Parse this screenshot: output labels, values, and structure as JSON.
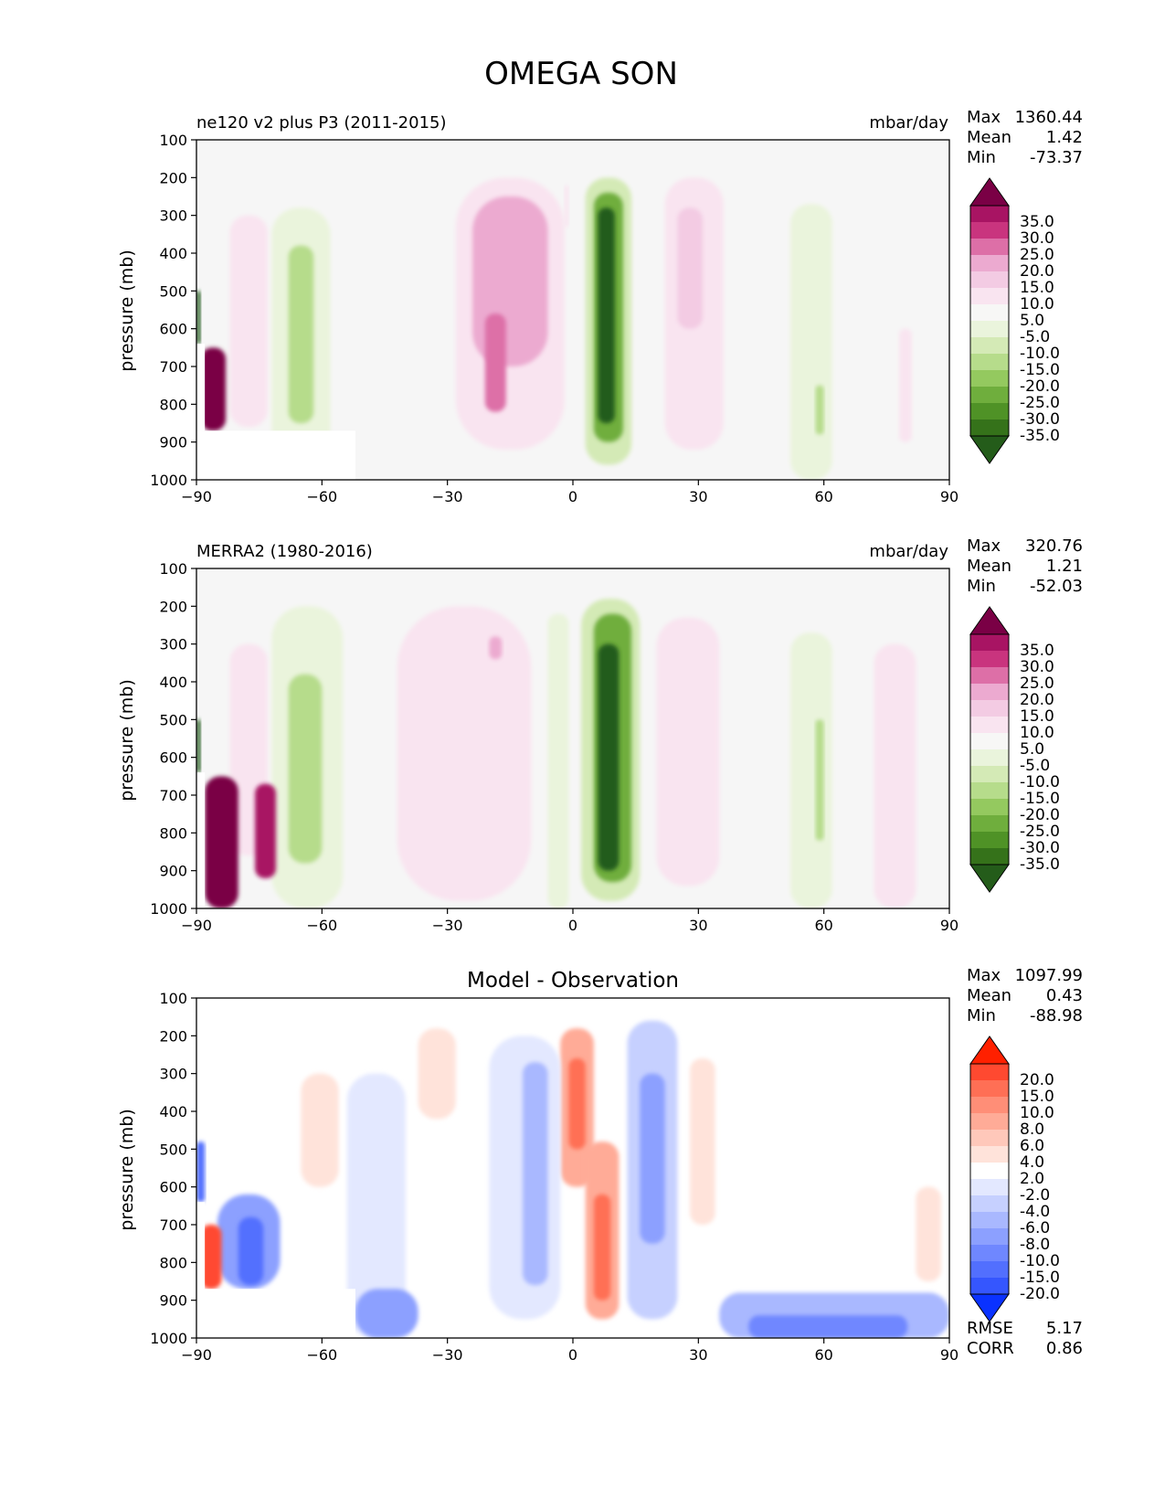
{
  "figure_title": "OMEGA SON",
  "colors": {
    "omega_levels": [
      "#7a0045",
      "#a81463",
      "#c9347e",
      "#dd6fa7",
      "#ecaad0",
      "#f3cbe3",
      "#f9e4f0",
      "#f7f7f6",
      "#eaf4dc",
      "#d4eab6",
      "#b6dc8b",
      "#94c95f",
      "#6fae3d",
      "#4f9226",
      "#35721a",
      "#245c1a"
    ],
    "diff_levels": [
      "#ff2000",
      "#ff4930",
      "#ff6f55",
      "#ff8e77",
      "#ffab97",
      "#ffc8ba",
      "#ffe3da",
      "#ffffff",
      "#e3e8ff",
      "#c6d0ff",
      "#a9b8ff",
      "#8ca0ff",
      "#6f87ff",
      "#526ffe",
      "#3556fe",
      "#0a32ff"
    ],
    "background": "#f6f6f6"
  },
  "chart_data": [
    {
      "type": "heatmap",
      "title": "ne120 v2 plus P3 (2011-2015)",
      "units": "mbar/day",
      "xlabel": "",
      "ylabel": "pressure (mb)",
      "xlim": [
        -90,
        90
      ],
      "ylim": [
        1000,
        100
      ],
      "xticks": [
        "−90",
        "−60",
        "−30",
        "0",
        "30",
        "60",
        "90"
      ],
      "yticks": [
        "100",
        "200",
        "300",
        "400",
        "500",
        "600",
        "700",
        "800",
        "900",
        "1000"
      ],
      "stats": {
        "max_label": "Max",
        "max": "1360.44",
        "mean_label": "Mean",
        "mean": "1.42",
        "min_label": "Min",
        "min": "-73.37"
      },
      "colorbar": {
        "labels": [
          "35.0",
          "30.0",
          "25.0",
          "20.0",
          "15.0",
          "10.0",
          "5.0",
          "-5.0",
          "-10.0",
          "-15.0",
          "-20.0",
          "-25.0",
          "-30.0",
          "-35.0"
        ]
      },
      "features": [
        {
          "lat": [
            -28,
            -2
          ],
          "p": [
            200,
            920
          ],
          "value": 8
        },
        {
          "lat": [
            -24,
            -6
          ],
          "p": [
            250,
            700
          ],
          "value": 16
        },
        {
          "lat": [
            -21,
            -16
          ],
          "p": [
            560,
            820
          ],
          "value": 22
        },
        {
          "lat": [
            -2,
            -1
          ],
          "p": [
            220,
            330
          ],
          "value": 7
        },
        {
          "lat": [
            3,
            14
          ],
          "p": [
            200,
            960
          ],
          "value": -12
        },
        {
          "lat": [
            5,
            12
          ],
          "p": [
            240,
            900
          ],
          "value": -25
        },
        {
          "lat": [
            6,
            10
          ],
          "p": [
            280,
            850
          ],
          "value": -37
        },
        {
          "lat": [
            22,
            36
          ],
          "p": [
            200,
            920
          ],
          "value": 8
        },
        {
          "lat": [
            25,
            31
          ],
          "p": [
            280,
            600
          ],
          "value": 14
        },
        {
          "lat": [
            -72,
            -58
          ],
          "p": [
            280,
            1000
          ],
          "value": -8
        },
        {
          "lat": [
            -68,
            -62
          ],
          "p": [
            380,
            850
          ],
          "value": -15
        },
        {
          "lat": [
            52,
            62
          ],
          "p": [
            270,
            1000
          ],
          "value": -8
        },
        {
          "lat": [
            58,
            60
          ],
          "p": [
            750,
            880
          ],
          "value": -18
        },
        {
          "lat": [
            -82,
            -73
          ],
          "p": [
            300,
            860
          ],
          "value": 7
        },
        {
          "lat": [
            -89,
            -83
          ],
          "p": [
            650,
            870
          ],
          "value": 40
        },
        {
          "lat": [
            -90,
            -89
          ],
          "p": [
            500,
            640
          ],
          "value": -37
        },
        {
          "lat": [
            78,
            81
          ],
          "p": [
            600,
            900
          ],
          "value": 8
        }
      ],
      "masks": [
        {
          "lat": [
            -90,
            -52
          ],
          "p": [
            870,
            1000
          ]
        },
        {
          "lat": [
            -90,
            -88
          ],
          "p": [
            640,
            870
          ]
        }
      ]
    },
    {
      "type": "heatmap",
      "title": "MERRA2 (1980-2016)",
      "units": "mbar/day",
      "xlabel": "",
      "ylabel": "pressure (mb)",
      "xlim": [
        -90,
        90
      ],
      "ylim": [
        1000,
        100
      ],
      "xticks": [
        "−90",
        "−60",
        "−30",
        "0",
        "30",
        "60",
        "90"
      ],
      "yticks": [
        "100",
        "200",
        "300",
        "400",
        "500",
        "600",
        "700",
        "800",
        "900",
        "1000"
      ],
      "stats": {
        "max_label": "Max",
        "max": "320.76",
        "mean_label": "Mean",
        "mean": "1.21",
        "min_label": "Min",
        "min": "-52.03"
      },
      "colorbar": {
        "labels": [
          "35.0",
          "30.0",
          "25.0",
          "20.0",
          "15.0",
          "10.0",
          "5.0",
          "-5.0",
          "-10.0",
          "-15.0",
          "-20.0",
          "-25.0",
          "-30.0",
          "-35.0"
        ]
      },
      "features": [
        {
          "lat": [
            -42,
            -10
          ],
          "p": [
            200,
            980
          ],
          "value": 8
        },
        {
          "lat": [
            -20,
            -17
          ],
          "p": [
            280,
            340
          ],
          "value": 17
        },
        {
          "lat": [
            -6,
            -1
          ],
          "p": [
            220,
            1000
          ],
          "value": -7
        },
        {
          "lat": [
            2,
            16
          ],
          "p": [
            180,
            980
          ],
          "value": -12
        },
        {
          "lat": [
            5,
            14
          ],
          "p": [
            220,
            930
          ],
          "value": -25
        },
        {
          "lat": [
            6,
            11
          ],
          "p": [
            300,
            900
          ],
          "value": -38
        },
        {
          "lat": [
            20,
            35
          ],
          "p": [
            230,
            940
          ],
          "value": 8
        },
        {
          "lat": [
            -72,
            -55
          ],
          "p": [
            200,
            1000
          ],
          "value": -8
        },
        {
          "lat": [
            -68,
            -60
          ],
          "p": [
            380,
            880
          ],
          "value": -15
        },
        {
          "lat": [
            52,
            62
          ],
          "p": [
            270,
            1000
          ],
          "value": -8
        },
        {
          "lat": [
            58,
            60
          ],
          "p": [
            500,
            820
          ],
          "value": -16
        },
        {
          "lat": [
            -82,
            -73
          ],
          "p": [
            300,
            860
          ],
          "value": 7
        },
        {
          "lat": [
            -88,
            -80
          ],
          "p": [
            650,
            1000
          ],
          "value": 40
        },
        {
          "lat": [
            -76,
            -71
          ],
          "p": [
            670,
            920
          ],
          "value": 32
        },
        {
          "lat": [
            -90,
            -89
          ],
          "p": [
            500,
            640
          ],
          "value": -37
        },
        {
          "lat": [
            72,
            82
          ],
          "p": [
            300,
            1000
          ],
          "value": 7
        }
      ],
      "masks": [
        {
          "lat": [
            -90,
            -88
          ],
          "p": [
            640,
            1000
          ]
        }
      ]
    },
    {
      "type": "heatmap",
      "title": "Model - Observation",
      "units": "",
      "xlabel": "",
      "ylabel": "pressure (mb)",
      "xlim": [
        -90,
        90
      ],
      "ylim": [
        1000,
        100
      ],
      "xticks": [
        "−90",
        "−60",
        "−30",
        "0",
        "30",
        "60",
        "90"
      ],
      "yticks": [
        "100",
        "200",
        "300",
        "400",
        "500",
        "600",
        "700",
        "800",
        "900",
        "1000"
      ],
      "stats": {
        "max_label": "Max",
        "max": "1097.99",
        "mean_label": "Mean",
        "mean": "0.43",
        "min_label": "Min",
        "min": "-88.98",
        "rmse_label": "RMSE",
        "rmse": "5.17",
        "corr_label": "CORR",
        "corr": "0.86"
      },
      "colorbar": {
        "labels": [
          "20.0",
          "15.0",
          "10.0",
          "8.0",
          "6.0",
          "4.0",
          "2.0",
          "-2.0",
          "-4.0",
          "-6.0",
          "-8.0",
          "-10.0",
          "-15.0",
          "-20.0"
        ]
      },
      "features": [
        {
          "lat": [
            -3,
            5
          ],
          "p": [
            180,
            600
          ],
          "value": 7
        },
        {
          "lat": [
            -1,
            3
          ],
          "p": [
            260,
            500
          ],
          "value": 14
        },
        {
          "lat": [
            3,
            11
          ],
          "p": [
            480,
            950
          ],
          "value": 8
        },
        {
          "lat": [
            5,
            9
          ],
          "p": [
            620,
            900
          ],
          "value": 15
        },
        {
          "lat": [
            13,
            25
          ],
          "p": [
            160,
            950
          ],
          "value": -4
        },
        {
          "lat": [
            16,
            22
          ],
          "p": [
            300,
            750
          ],
          "value": -8
        },
        {
          "lat": [
            -20,
            -3
          ],
          "p": [
            200,
            950
          ],
          "value": -3
        },
        {
          "lat": [
            -12,
            -6
          ],
          "p": [
            270,
            860
          ],
          "value": -7
        },
        {
          "lat": [
            -37,
            -28
          ],
          "p": [
            180,
            420
          ],
          "value": 3
        },
        {
          "lat": [
            -54,
            -40
          ],
          "p": [
            300,
            1000
          ],
          "value": -3
        },
        {
          "lat": [
            -52,
            -37
          ],
          "p": [
            870,
            1000
          ],
          "value": -8
        },
        {
          "lat": [
            -65,
            -56
          ],
          "p": [
            300,
            600
          ],
          "value": 3
        },
        {
          "lat": [
            35,
            90
          ],
          "p": [
            880,
            1000
          ],
          "value": -6
        },
        {
          "lat": [
            42,
            80
          ],
          "p": [
            940,
            1000
          ],
          "value": -10
        },
        {
          "lat": [
            -85,
            -70
          ],
          "p": [
            620,
            870
          ],
          "value": -9
        },
        {
          "lat": [
            -80,
            -74
          ],
          "p": [
            680,
            860
          ],
          "value": -17
        },
        {
          "lat": [
            -89,
            -84
          ],
          "p": [
            700,
            870
          ],
          "value": 18
        },
        {
          "lat": [
            -90,
            -88
          ],
          "p": [
            480,
            640
          ],
          "value": -17
        },
        {
          "lat": [
            28,
            34
          ],
          "p": [
            260,
            700
          ],
          "value": 3
        },
        {
          "lat": [
            82,
            88
          ],
          "p": [
            600,
            850
          ],
          "value": 3
        }
      ],
      "masks": [
        {
          "lat": [
            -90,
            -52
          ],
          "p": [
            870,
            1000
          ]
        },
        {
          "lat": [
            -90,
            -88
          ],
          "p": [
            640,
            870
          ]
        }
      ]
    }
  ]
}
